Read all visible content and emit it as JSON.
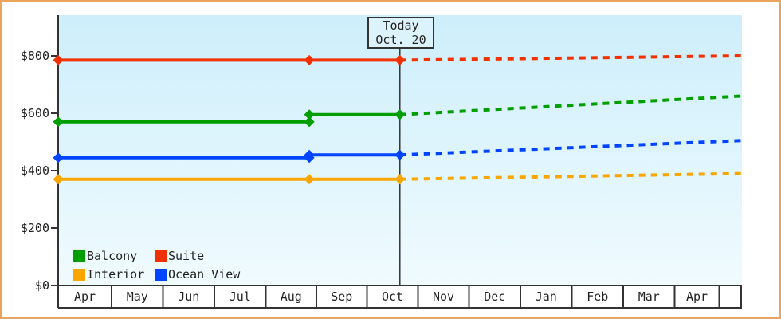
{
  "chart_data": {
    "type": "line",
    "description": "Cruise cabin price history with dotted forecast after today marker",
    "y_axis": {
      "max": 800,
      "ticks": [
        {
          "value": 0,
          "label": "$0"
        },
        {
          "value": 200,
          "label": "$200"
        },
        {
          "value": 400,
          "label": "$400"
        },
        {
          "value": 600,
          "label": "$600"
        },
        {
          "value": 800,
          "label": "$800"
        }
      ]
    },
    "x_axis": {
      "months": [
        "Apr",
        "May",
        "Jun",
        "Jul",
        "Aug",
        "Sep",
        "Oct",
        "Nov",
        "Dec",
        "Jan",
        "Feb",
        "Mar",
        "Apr"
      ]
    },
    "today": {
      "line1": "Today",
      "line2": "Oct. 20",
      "position_month": 6.645
    },
    "series": [
      {
        "name": "Balcony",
        "color": "#009e00",
        "history": [
          [
            0,
            570
          ],
          [
            4.86,
            570
          ],
          [
            4.86,
            595
          ],
          [
            6.645,
            595
          ]
        ],
        "forecast": [
          [
            6.645,
            595
          ],
          [
            14,
            660
          ]
        ],
        "markers": [
          [
            0,
            570
          ],
          [
            4.86,
            570
          ],
          [
            4.86,
            595
          ],
          [
            6.645,
            595
          ]
        ]
      },
      {
        "name": "Suite",
        "color": "#f23000",
        "history": [
          [
            0,
            785
          ],
          [
            4.86,
            785
          ],
          [
            6.645,
            785
          ]
        ],
        "forecast": [
          [
            6.645,
            785
          ],
          [
            14,
            800
          ]
        ],
        "markers": [
          [
            0,
            785
          ],
          [
            4.86,
            785
          ],
          [
            6.645,
            785
          ]
        ]
      },
      {
        "name": "Interior",
        "color": "#f9a700",
        "history": [
          [
            0,
            370
          ],
          [
            4.86,
            370
          ],
          [
            6.645,
            370
          ]
        ],
        "forecast": [
          [
            6.645,
            370
          ],
          [
            14,
            390
          ]
        ],
        "markers": [
          [
            0,
            370
          ],
          [
            4.86,
            370
          ],
          [
            6.645,
            370
          ]
        ]
      },
      {
        "name": "Ocean View",
        "color": "#0044ff",
        "history": [
          [
            0,
            445
          ],
          [
            4.86,
            445
          ],
          [
            4.86,
            455
          ],
          [
            6.645,
            455
          ]
        ],
        "forecast": [
          [
            6.645,
            455
          ],
          [
            14,
            505
          ]
        ],
        "markers": [
          [
            0,
            445
          ],
          [
            4.86,
            445
          ],
          [
            4.86,
            455
          ],
          [
            6.645,
            455
          ]
        ]
      }
    ],
    "legend": [
      "Balcony",
      "Suite",
      "Interior",
      "Ocean View"
    ],
    "colors": {
      "frame_border": "#eba45b",
      "axis": "#333333",
      "text": "#222222",
      "plot_bg_top": "#cdeefb",
      "plot_bg_bottom": "#f0fbfe",
      "today_box_fill": "#ddf3fb",
      "band_fill": "#ffffff"
    }
  }
}
